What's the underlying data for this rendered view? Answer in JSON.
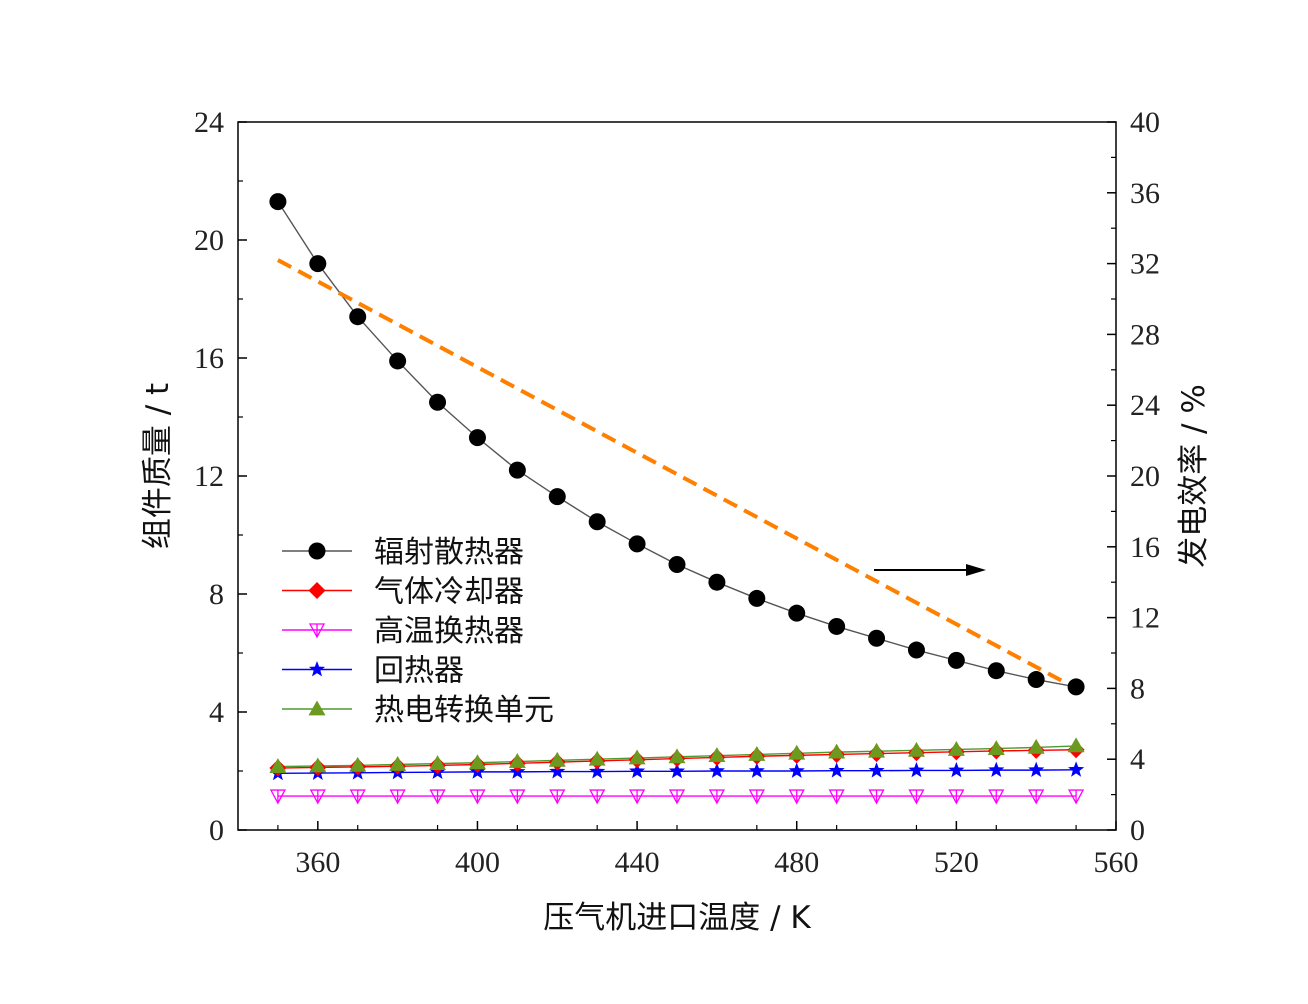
{
  "chart_data": {
    "type": "line",
    "xlabel": "压气机进口温度 / K",
    "ylabel_left": "组件质量 / t",
    "ylabel_right": "发电效率 / %",
    "xlim": [
      340,
      560
    ],
    "xticks": [
      360,
      400,
      440,
      480,
      520,
      560
    ],
    "ylim_left": [
      0,
      24
    ],
    "yticks_left": [
      0,
      4,
      8,
      12,
      16,
      20,
      24
    ],
    "ylim_right": [
      0,
      40
    ],
    "yticks_right": [
      0,
      4,
      8,
      12,
      16,
      20,
      24,
      28,
      32,
      36,
      40
    ],
    "grid": false,
    "legend_position": "left",
    "x": [
      350,
      360,
      370,
      380,
      390,
      400,
      410,
      420,
      430,
      440,
      450,
      460,
      470,
      480,
      490,
      500,
      510,
      520,
      530,
      540,
      550
    ],
    "series": [
      {
        "name": "辐射散热器",
        "axis": "left",
        "color": "#000000",
        "line_color": "#555555",
        "marker": "circle",
        "values": [
          21.3,
          19.2,
          17.4,
          15.9,
          14.5,
          13.3,
          12.2,
          11.3,
          10.45,
          9.7,
          9.0,
          8.4,
          7.85,
          7.35,
          6.9,
          6.5,
          6.1,
          5.75,
          5.4,
          5.1,
          4.85
        ]
      },
      {
        "name": "气体冷却器",
        "axis": "left",
        "color": "#ff0000",
        "marker": "diamond",
        "values": [
          2.1,
          2.12,
          2.14,
          2.16,
          2.19,
          2.22,
          2.26,
          2.3,
          2.34,
          2.38,
          2.42,
          2.46,
          2.5,
          2.53,
          2.56,
          2.59,
          2.62,
          2.65,
          2.68,
          2.7,
          2.72
        ]
      },
      {
        "name": "高温换热器",
        "axis": "left",
        "color": "#ff00ff",
        "marker": "triangle-down-open",
        "values": [
          1.15,
          1.15,
          1.15,
          1.15,
          1.15,
          1.15,
          1.15,
          1.15,
          1.15,
          1.15,
          1.15,
          1.15,
          1.15,
          1.15,
          1.15,
          1.15,
          1.15,
          1.15,
          1.15,
          1.15,
          1.15
        ]
      },
      {
        "name": "回热器",
        "axis": "left",
        "color": "#0000ff",
        "marker": "star",
        "values": [
          1.92,
          1.93,
          1.94,
          1.95,
          1.96,
          1.97,
          1.97,
          1.98,
          1.98,
          1.99,
          1.99,
          2.0,
          2.0,
          2.0,
          2.01,
          2.01,
          2.02,
          2.02,
          2.03,
          2.03,
          2.04
        ]
      },
      {
        "name": "热电转换单元",
        "axis": "left",
        "color": "#6b9a1e",
        "line_color": "#4f9a2e",
        "marker": "triangle-up",
        "values": [
          2.15,
          2.17,
          2.19,
          2.22,
          2.25,
          2.28,
          2.32,
          2.36,
          2.4,
          2.44,
          2.48,
          2.52,
          2.56,
          2.6,
          2.64,
          2.67,
          2.7,
          2.73,
          2.76,
          2.8,
          2.85
        ]
      },
      {
        "axis": "right",
        "color": "#ff8000",
        "dashed": true,
        "marker": "none",
        "x": [
          350,
          550
        ],
        "values": [
          32.2,
          8.0
        ]
      }
    ]
  }
}
